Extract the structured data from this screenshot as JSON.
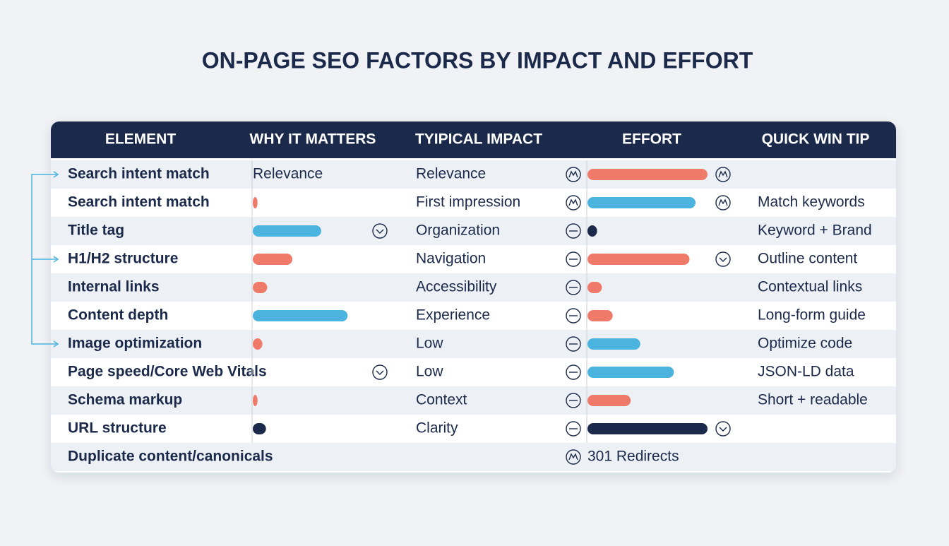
{
  "title": "ON-PAGE SEO FACTORS BY IMPACT AND EFFORT",
  "table": {
    "columns": [
      "ELEMENT",
      "WHY IT MATTERS",
      "TYIPICAL IMPACT",
      "EFFORT",
      "QUICK WIN TIP"
    ],
    "rows": [
      {
        "element": "Search intent match",
        "why": {
          "text": "Relevance"
        },
        "impact": "Relevance",
        "impact_icon": "up",
        "effort": {
          "bar": 100,
          "color": "#f07a6a"
        },
        "effort_icon": "up"
      },
      {
        "element": "Search intent match",
        "why": {
          "bar": 4,
          "color": "#f07a6a"
        },
        "impact": "First impression",
        "impact_icon": "up",
        "effort": {
          "bar": 90,
          "color": "#4ab3de"
        },
        "effort_icon": "up",
        "tip": "Match keywords"
      },
      {
        "element": "Title tag",
        "why": {
          "bar": 57,
          "color": "#4ab3de"
        },
        "why_icon": "down",
        "impact": "Organization",
        "impact_icon": "minus",
        "effort": {
          "bar": 8,
          "color": "#1b2a4a"
        },
        "tip": "Keyword + Brand"
      },
      {
        "element": "H1/H2 structure",
        "why": {
          "bar": 33,
          "color": "#f07a6a"
        },
        "impact": "Navigation",
        "impact_icon": "minus",
        "effort": {
          "bar": 85,
          "color": "#f07a6a"
        },
        "effort_icon": "down",
        "tip": "Outline content"
      },
      {
        "element": "Internal links",
        "why": {
          "bar": 12,
          "color": "#f07a6a"
        },
        "impact": "Accessibility",
        "impact_icon": "minus",
        "effort": {
          "bar": 12,
          "color": "#f07a6a"
        },
        "tip": "Contextual links"
      },
      {
        "element": "Content depth",
        "why": {
          "bar": 79,
          "color": "#4ab3de"
        },
        "impact": "Experience",
        "impact_icon": "minus",
        "effort": {
          "bar": 21,
          "color": "#f07a6a"
        },
        "tip": "Long-form guide"
      },
      {
        "element": "Image optimization",
        "why": {
          "bar": 8,
          "color": "#f07a6a"
        },
        "impact": "Low",
        "impact_icon": "minus",
        "effort": {
          "bar": 44,
          "color": "#4ab3de"
        },
        "tip": "Optimize code"
      },
      {
        "element": "Page speed/Core Web Vitals",
        "why_icon": "down",
        "impact": "Low",
        "impact_icon": "minus",
        "effort": {
          "bar": 72,
          "color": "#4ab3de"
        },
        "tip": "JSON-LD data"
      },
      {
        "element": "Schema markup",
        "why": {
          "bar": 4,
          "color": "#f07a6a"
        },
        "impact": "Context",
        "impact_icon": "minus",
        "effort": {
          "bar": 36,
          "color": "#f07a6a"
        },
        "tip": "Short + readable"
      },
      {
        "element": "URL structure",
        "why": {
          "bar": 11,
          "color": "#1b2a4a"
        },
        "impact": "Clarity",
        "impact_icon": "minus",
        "effort": {
          "bar": 100,
          "color": "#1b2a4a"
        },
        "effort_icon": "down"
      },
      {
        "element": "Duplicate content/canonicals",
        "impact_icon": "up",
        "effort": {
          "text": "301 Redirects"
        }
      }
    ]
  }
}
